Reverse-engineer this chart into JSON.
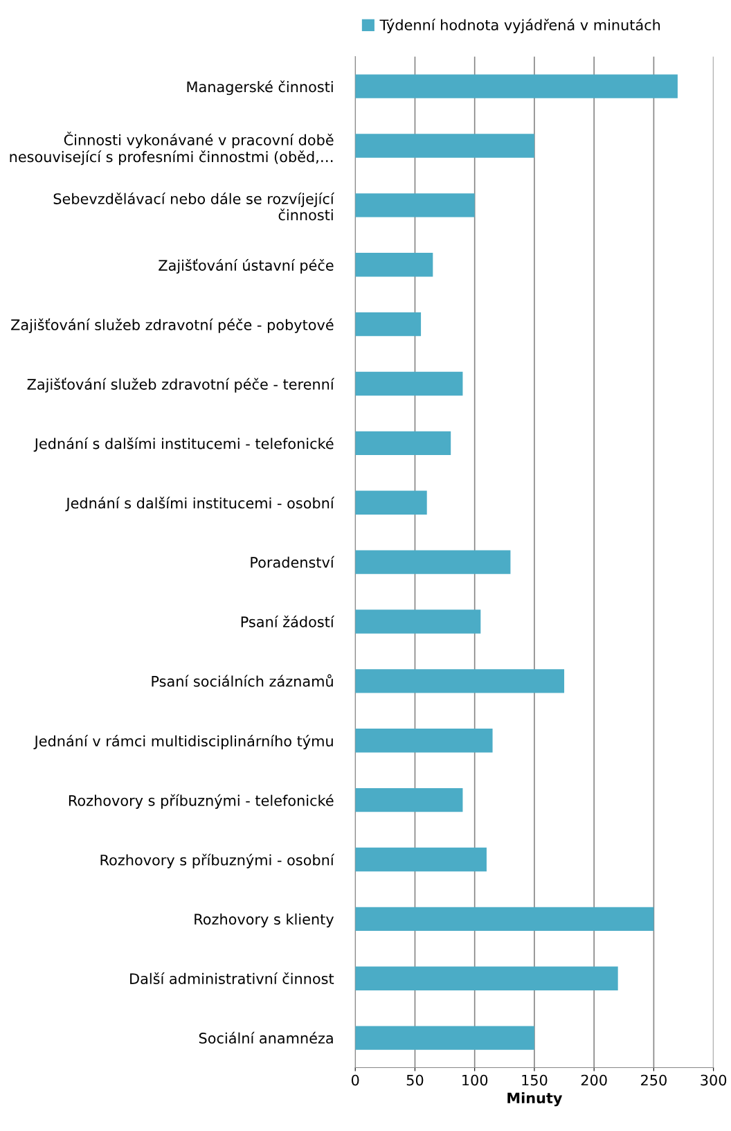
{
  "chart_data": {
    "type": "bar",
    "orientation": "horizontal",
    "xlabel": "Minuty",
    "categories": [
      "Managerské činnosti",
      "Činnosti vykonávané v pracovní době nesouvisející s profesními činnostmi (oběd,…",
      "Sebevzdělávací nebo dále se rozvíjející činnosti",
      "Zajišťování ústavní péče",
      "Zajišťování služeb zdravotní péče - pobytové",
      "Zajišťování služeb zdravotní péče - terenní",
      "Jednání s dalšími institucemi - telefonické",
      "Jednání s dalšími institucemi - osobní",
      "Poradenství",
      "Psaní žádostí",
      "Psaní sociálních záznamů",
      "Jednání v rámci multidisciplinárního týmu",
      "Rozhovory s příbuznými - telefonické",
      "Rozhovory s příbuznými - osobní",
      "Rozhovory s klienty",
      "Další administrativní činnost",
      "Sociální anamnéza"
    ],
    "series": [
      {
        "name": "Týdenní hodnota vyjádřená v minutách",
        "color": "#4bacc6",
        "values": [
          270,
          150,
          100,
          65,
          55,
          90,
          80,
          60,
          130,
          105,
          175,
          115,
          90,
          110,
          250,
          220,
          150
        ]
      }
    ],
    "xlim": [
      0,
      300
    ],
    "xticks": [
      0,
      50,
      100,
      150,
      200,
      250,
      300
    ],
    "grid": "x",
    "legend": "top"
  }
}
